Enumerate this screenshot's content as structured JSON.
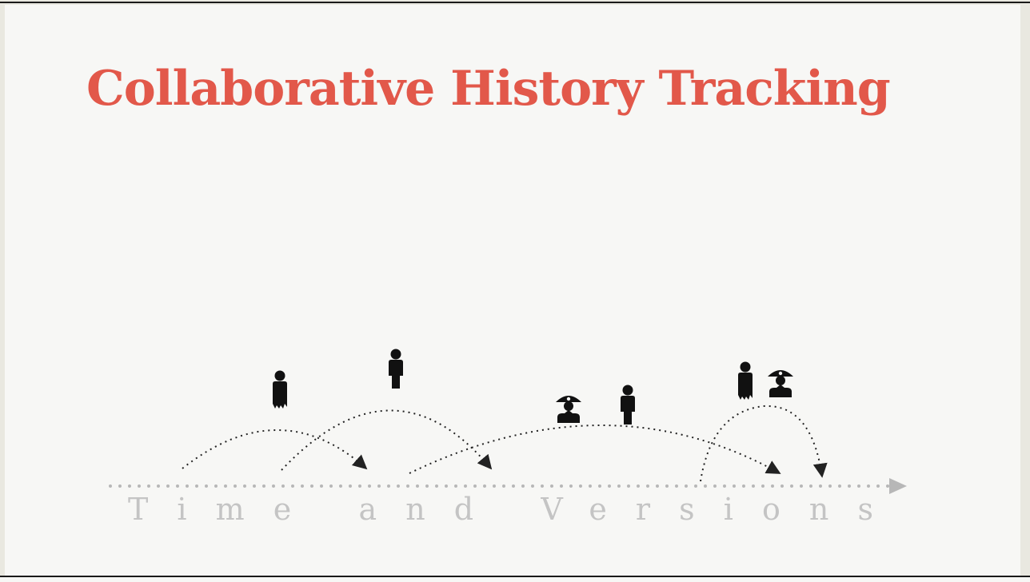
{
  "slide": {
    "title": "Collaborative History Tracking",
    "title_color": "#e2584a",
    "axis_label": "Time and Versions",
    "axis_color": "#b7b7b7",
    "label_color": "#c4c4c4"
  },
  "icons": [
    "person-icon",
    "person-icon",
    "pirate-icon",
    "person-icon",
    "person-icon",
    "pirate-icon"
  ]
}
